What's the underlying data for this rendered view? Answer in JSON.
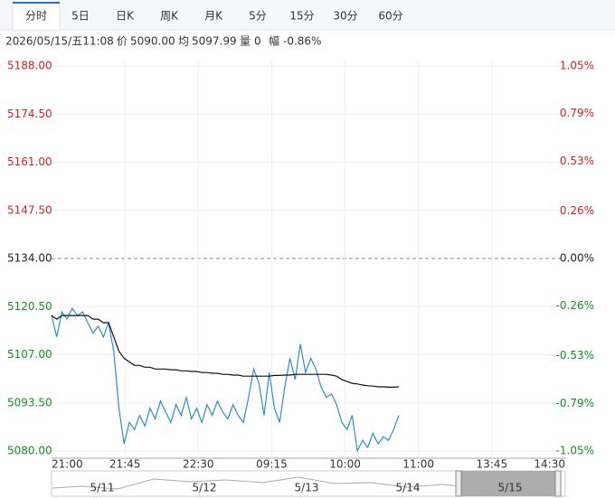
{
  "tabs": [
    "分时",
    "5日",
    "日K",
    "周K",
    "月K",
    "5分",
    "15分",
    "30分",
    "60分"
  ],
  "active_tab": 0,
  "info": {
    "datetime": "2026/05/15/五11:08",
    "price_label": "价",
    "price": "5090.00",
    "avg_label": "均",
    "avg": "5097.99",
    "vol_label": "量",
    "vol": "0",
    "change_label": "幅",
    "change": "-0.86%"
  },
  "chart_data": {
    "type": "line",
    "xticks": [
      "21:00",
      "21:45",
      "22:30",
      "09:15",
      "10:00",
      "11:00",
      "13:45",
      "14:30"
    ],
    "ylim": [
      5080,
      5188
    ],
    "yticks": [
      {
        "value": 5188,
        "label": "5188.00"
      },
      {
        "value": 5174.5,
        "label": "5174.50"
      },
      {
        "value": 5161,
        "label": "5161.00"
      },
      {
        "value": 5147.5,
        "label": "5147.50"
      },
      {
        "value": 5134,
        "label": "5134.00"
      },
      {
        "value": 5120.5,
        "label": "5120.50"
      },
      {
        "value": 5107,
        "label": "5107.00"
      },
      {
        "value": 5093.5,
        "label": "5093.50"
      },
      {
        "value": 5080,
        "label": "5080.00"
      }
    ],
    "y2lim": [
      -1.05,
      1.05
    ],
    "y2ticks": [
      {
        "value": 1.05,
        "label": "1.05%"
      },
      {
        "value": 0.79,
        "label": "0.79%"
      },
      {
        "value": 0.53,
        "label": "0.53%"
      },
      {
        "value": 0.26,
        "label": "0.26%"
      },
      {
        "value": 0,
        "label": "0.00%"
      },
      {
        "value": -0.26,
        "label": "-0.26%"
      },
      {
        "value": -0.53,
        "label": "-0.53%"
      },
      {
        "value": -0.79,
        "label": "-0.79%"
      },
      {
        "value": -1.05,
        "label": "-1.05%"
      }
    ],
    "up_color": "#e02020",
    "down_color": "#109618",
    "flat_color": "#222222",
    "grid": true,
    "series": [
      {
        "color": "#2a8fd0",
        "values": [
          5118,
          5112,
          5119,
          5117,
          5120,
          5118,
          5119,
          5116,
          5113,
          5115,
          5112,
          5116,
          5108,
          5092,
          5082,
          5088,
          5086,
          5090,
          5087,
          5092,
          5089,
          5094,
          5091,
          5088,
          5093,
          5090,
          5095,
          5089,
          5092,
          5088,
          5093,
          5090,
          5094,
          5091,
          5089,
          5093,
          5090,
          5088,
          5095,
          5103,
          5099,
          5090,
          5102,
          5092,
          5088,
          5098,
          5106,
          5100,
          5110,
          5102,
          5106,
          5103,
          5098,
          5095,
          5096,
          5093,
          5088,
          5086,
          5090,
          5080,
          5083,
          5081,
          5085,
          5082,
          5084,
          5083,
          5086,
          5090
        ]
      },
      {
        "color": "#111111",
        "values": [
          5118,
          5117,
          5118,
          5118,
          5118,
          5118,
          5118,
          5118,
          5117,
          5117,
          5116,
          5116,
          5112,
          5108,
          5106,
          5105,
          5104,
          5104,
          5103.5,
          5103.5,
          5103,
          5103,
          5103,
          5102.8,
          5102.8,
          5102.5,
          5102.5,
          5102.3,
          5102.3,
          5102,
          5102,
          5101.8,
          5101.8,
          5101.5,
          5101.5,
          5101.3,
          5101.3,
          5101,
          5101,
          5101,
          5101,
          5101,
          5101,
          5101.2,
          5101.2,
          5101.3,
          5101.3,
          5101.5,
          5101.5,
          5101.5,
          5101.5,
          5101.5,
          5101.5,
          5101.5,
          5101.3,
          5101,
          5100,
          5099.5,
          5099,
          5098.8,
          5098.5,
          5098.3,
          5098.2,
          5098,
          5098,
          5097.9,
          5097.9,
          5097.99
        ]
      }
    ]
  },
  "navigator_dates": [
    "5/11",
    "5/12",
    "5/13",
    "5/14",
    "5/15"
  ]
}
